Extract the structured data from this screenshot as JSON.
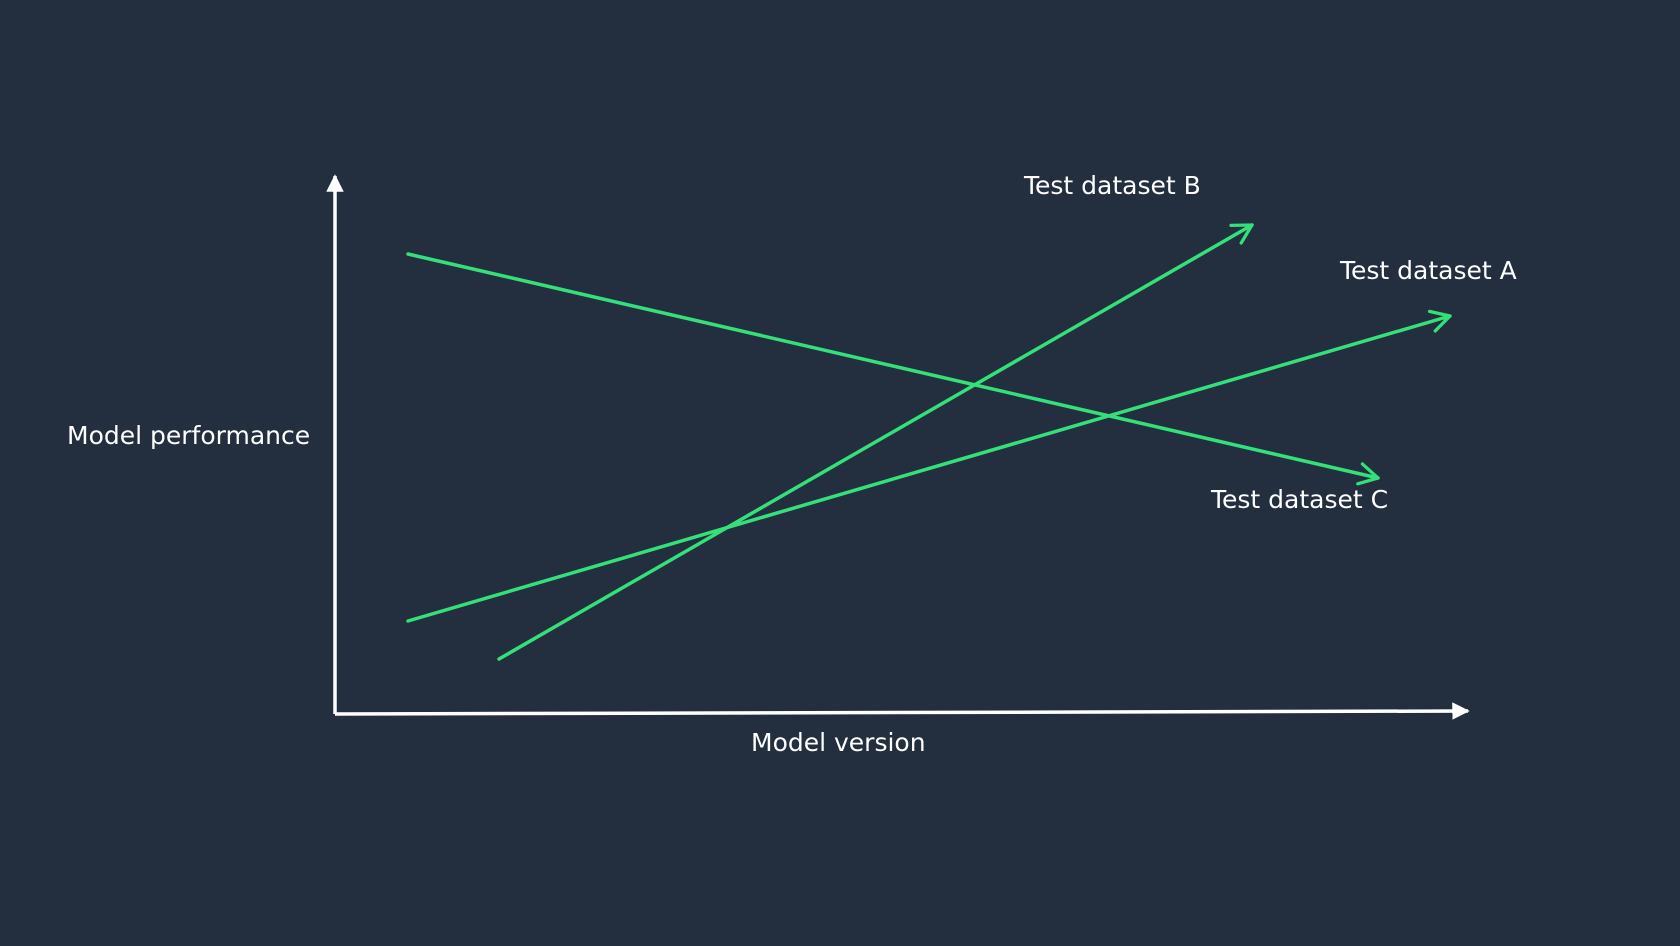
{
  "diagram": {
    "y_axis_label": "Model performance",
    "x_axis_label": "Model version",
    "series_labels": {
      "b": "Test dataset B",
      "a": "Test dataset A",
      "c": "Test dataset C"
    },
    "colors": {
      "background": "#232e3f",
      "axis": "#ffffff",
      "series_line": "#34e07a",
      "text": "#ffffff"
    }
  }
}
